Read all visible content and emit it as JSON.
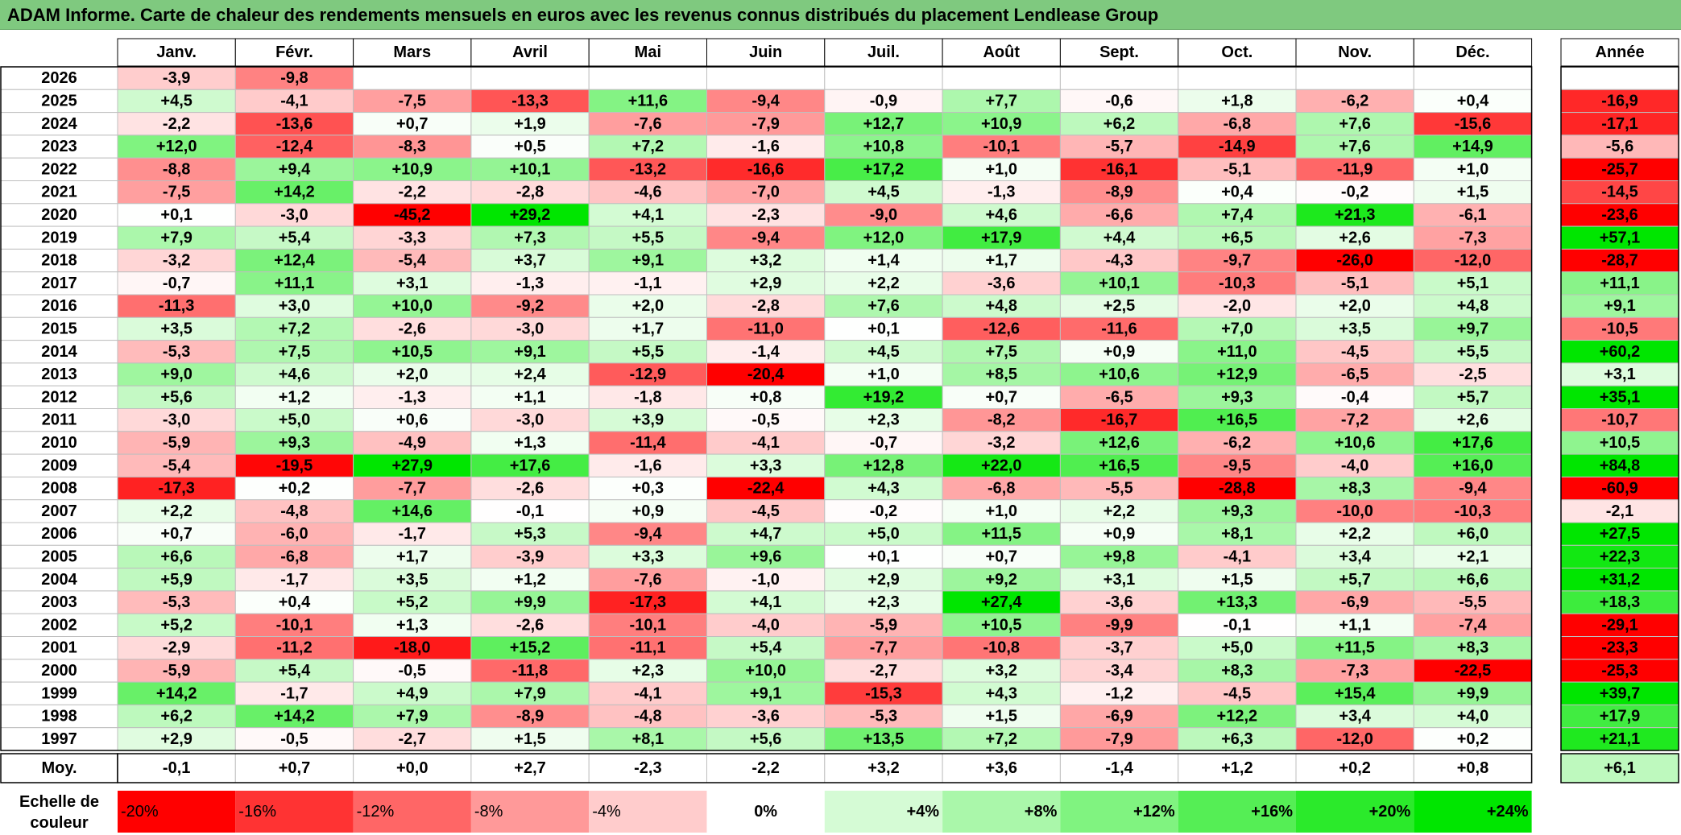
{
  "title": "ADAM Informe. Carte de chaleur des rendements mensuels en euros avec les revenus connus distribués du placement Lendlease Group",
  "chart_data": {
    "type": "heatmap",
    "title": "ADAM Informe. Carte de chaleur des rendements mensuels en euros avec les revenus connus distribués du placement Lendlease Group",
    "columns": [
      "Janv.",
      "Févr.",
      "Mars",
      "Avril",
      "Mai",
      "Juin",
      "Juil.",
      "Août",
      "Sept.",
      "Oct.",
      "Nov.",
      "Déc."
    ],
    "year_header": "Année",
    "rows": [
      {
        "year": "2026",
        "values": [
          -3.9,
          -9.8,
          null,
          null,
          null,
          null,
          null,
          null,
          null,
          null,
          null,
          null
        ],
        "annual": null
      },
      {
        "year": "2025",
        "values": [
          4.5,
          -4.1,
          -7.5,
          -13.3,
          11.6,
          -9.4,
          -0.9,
          7.7,
          -0.6,
          1.8,
          -6.2,
          0.4
        ],
        "annual": -16.9
      },
      {
        "year": "2024",
        "values": [
          -2.2,
          -13.6,
          0.7,
          1.9,
          -7.6,
          -7.9,
          12.7,
          10.9,
          6.2,
          -6.8,
          7.6,
          -15.6
        ],
        "annual": -17.1
      },
      {
        "year": "2023",
        "values": [
          12.0,
          -12.4,
          -8.3,
          0.5,
          7.2,
          -1.6,
          10.8,
          -10.1,
          -5.7,
          -14.9,
          7.6,
          14.9
        ],
        "annual": -5.6
      },
      {
        "year": "2022",
        "values": [
          -8.8,
          9.4,
          10.9,
          10.1,
          -13.2,
          -16.6,
          17.2,
          1.0,
          -16.1,
          -5.1,
          -11.9,
          1.0
        ],
        "annual": -25.7
      },
      {
        "year": "2021",
        "values": [
          -7.5,
          14.2,
          -2.2,
          -2.8,
          -4.6,
          -7.0,
          4.5,
          -1.3,
          -8.9,
          0.4,
          -0.2,
          1.5
        ],
        "annual": -14.5
      },
      {
        "year": "2020",
        "values": [
          0.1,
          -3.0,
          -45.2,
          29.2,
          4.1,
          -2.3,
          -9.0,
          4.6,
          -6.6,
          7.4,
          21.3,
          -6.1
        ],
        "annual": -23.6
      },
      {
        "year": "2019",
        "values": [
          7.9,
          5.4,
          -3.3,
          7.3,
          5.5,
          -9.4,
          12.0,
          17.9,
          4.4,
          6.5,
          2.6,
          -7.3
        ],
        "annual": 57.1
      },
      {
        "year": "2018",
        "values": [
          -3.2,
          12.4,
          -5.4,
          3.7,
          9.1,
          3.2,
          1.4,
          1.7,
          -4.3,
          -9.7,
          -26.0,
          -12.0
        ],
        "annual": -28.7
      },
      {
        "year": "2017",
        "values": [
          -0.7,
          11.1,
          3.1,
          -1.3,
          -1.1,
          2.9,
          2.2,
          -3.6,
          10.1,
          -10.3,
          -5.1,
          5.1
        ],
        "annual": 11.1
      },
      {
        "year": "2016",
        "values": [
          -11.3,
          3.0,
          10.0,
          -9.2,
          2.0,
          -2.8,
          7.6,
          4.8,
          2.5,
          -2.0,
          2.0,
          4.8
        ],
        "annual": 9.1
      },
      {
        "year": "2015",
        "values": [
          3.5,
          7.2,
          -2.6,
          -3.0,
          1.7,
          -11.0,
          0.1,
          -12.6,
          -11.6,
          7.0,
          3.5,
          9.7
        ],
        "annual": -10.5
      },
      {
        "year": "2014",
        "values": [
          -5.3,
          7.5,
          10.5,
          9.1,
          5.5,
          -1.4,
          4.5,
          7.5,
          0.9,
          11.0,
          -4.5,
          5.5
        ],
        "annual": 60.2
      },
      {
        "year": "2013",
        "values": [
          9.0,
          4.6,
          2.0,
          2.4,
          -12.9,
          -20.4,
          1.0,
          8.5,
          10.6,
          12.9,
          -6.5,
          -2.5
        ],
        "annual": 3.1
      },
      {
        "year": "2012",
        "values": [
          5.6,
          1.2,
          -1.3,
          1.1,
          -1.8,
          0.8,
          19.2,
          0.7,
          -6.5,
          9.3,
          -0.4,
          5.7
        ],
        "annual": 35.1
      },
      {
        "year": "2011",
        "values": [
          -3.0,
          5.0,
          0.6,
          -3.0,
          3.9,
          -0.5,
          2.3,
          -8.2,
          -16.7,
          16.5,
          -7.2,
          2.6
        ],
        "annual": -10.7
      },
      {
        "year": "2010",
        "values": [
          -5.9,
          9.3,
          -4.9,
          1.3,
          -11.4,
          -4.1,
          -0.7,
          -3.2,
          12.6,
          -6.2,
          10.6,
          17.6
        ],
        "annual": 10.5
      },
      {
        "year": "2009",
        "values": [
          -5.4,
          -19.5,
          27.9,
          17.6,
          -1.6,
          3.3,
          12.8,
          22.0,
          16.5,
          -9.5,
          -4.0,
          16.0
        ],
        "annual": 84.8
      },
      {
        "year": "2008",
        "values": [
          -17.3,
          0.2,
          -7.7,
          -2.6,
          0.3,
          -22.4,
          4.3,
          -6.8,
          -5.5,
          -28.8,
          8.3,
          -9.4
        ],
        "annual": -60.9
      },
      {
        "year": "2007",
        "values": [
          2.2,
          -4.8,
          14.6,
          -0.1,
          0.9,
          -4.5,
          -0.2,
          1.0,
          2.2,
          9.3,
          -10.0,
          -10.3
        ],
        "annual": -2.1
      },
      {
        "year": "2006",
        "values": [
          0.7,
          -6.0,
          -1.7,
          5.3,
          -9.4,
          4.7,
          5.0,
          11.5,
          0.9,
          8.1,
          2.2,
          6.0
        ],
        "annual": 27.5
      },
      {
        "year": "2005",
        "values": [
          6.6,
          -6.8,
          1.7,
          -3.9,
          3.3,
          9.6,
          0.1,
          0.7,
          9.8,
          -4.1,
          3.4,
          2.1
        ],
        "annual": 22.3
      },
      {
        "year": "2004",
        "values": [
          5.9,
          -1.7,
          3.5,
          1.2,
          -7.6,
          -1.0,
          2.9,
          9.2,
          3.1,
          1.5,
          5.7,
          6.6
        ],
        "annual": 31.2
      },
      {
        "year": "2003",
        "values": [
          -5.3,
          0.4,
          5.2,
          9.9,
          -17.3,
          4.1,
          2.3,
          27.4,
          -3.6,
          13.3,
          -6.9,
          -5.5
        ],
        "annual": 18.3
      },
      {
        "year": "2002",
        "values": [
          5.2,
          -10.1,
          1.3,
          -2.6,
          -10.1,
          -4.0,
          -5.9,
          10.5,
          -9.9,
          -0.1,
          1.1,
          -7.4
        ],
        "annual": -29.1
      },
      {
        "year": "2001",
        "values": [
          -2.9,
          -11.2,
          -18.0,
          15.2,
          -11.1,
          5.4,
          -7.7,
          -10.8,
          -3.7,
          5.0,
          11.5,
          8.3
        ],
        "annual": -23.3
      },
      {
        "year": "2000",
        "values": [
          -5.9,
          5.4,
          -0.5,
          -11.8,
          2.3,
          10.0,
          -2.7,
          3.2,
          -3.4,
          8.3,
          -7.3,
          -22.5
        ],
        "annual": -25.3
      },
      {
        "year": "1999",
        "values": [
          14.2,
          -1.7,
          4.9,
          7.9,
          -4.1,
          9.1,
          -15.3,
          4.3,
          -1.2,
          -4.5,
          15.4,
          9.9
        ],
        "annual": 39.7
      },
      {
        "year": "1998",
        "values": [
          6.2,
          14.2,
          7.9,
          -8.9,
          -4.8,
          -3.6,
          -5.3,
          1.5,
          -6.9,
          12.2,
          3.4,
          4.0
        ],
        "annual": 17.9
      },
      {
        "year": "1997",
        "values": [
          2.9,
          -0.5,
          -2.7,
          1.5,
          8.1,
          5.6,
          13.5,
          7.2,
          -7.9,
          6.3,
          -12.0,
          0.2
        ],
        "annual": 21.1
      }
    ],
    "average": {
      "label": "Moy.",
      "values": [
        -0.1,
        0.7,
        0.0,
        2.7,
        -2.3,
        -2.2,
        3.2,
        3.6,
        -1.4,
        1.2,
        0.2,
        0.8
      ],
      "annual": 6.1
    },
    "scale": {
      "label_line1": "Echelle de",
      "label_line2": "couleur",
      "stops": [
        -20,
        -16,
        -12,
        -8,
        -4,
        0,
        4,
        8,
        12,
        16,
        20,
        24
      ],
      "labels": [
        "-20%",
        "-16%",
        "-12%",
        "-8%",
        "-4%",
        "0%",
        "+4%",
        "+8%",
        "+12%",
        "+16%",
        "+20%",
        "+24%"
      ]
    },
    "colors": {
      "negative_max": "#ff0000",
      "neutral": "#ffffff",
      "positive_max": "#00e600",
      "title_bar": "#7fc97f",
      "grid": "#bfbfbf"
    }
  }
}
